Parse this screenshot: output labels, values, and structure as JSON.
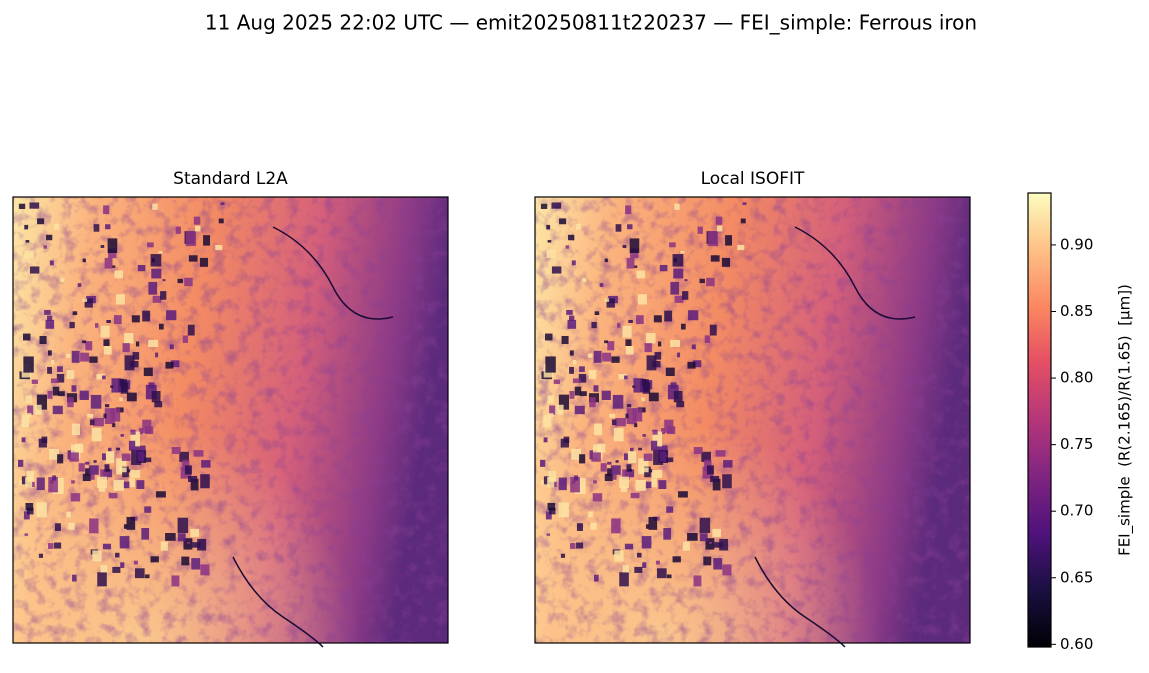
{
  "chart_data": {
    "type": "image",
    "title": "11 Aug 2025 22:02 UTC — emit20250811t220237 — FEI_simple: Ferrous iron",
    "panels": [
      {
        "title": "Standard L2A"
      },
      {
        "title": "Local ISOFIT"
      }
    ],
    "colorbar": {
      "label": "FEI_simple  (R(2.165)/R(1.65)  [µm])",
      "colormap": "magma",
      "lim": [
        0.598,
        0.939
      ],
      "ticks": [
        {
          "value": 0.6,
          "label": "0.60"
        },
        0.65,
        {
          "value": 0.7,
          "label": "0.70"
        },
        0.75,
        {
          "value": 0.8,
          "label": "0.80"
        },
        0.85,
        {
          "value": 0.9,
          "label": "0.90"
        }
      ]
    }
  }
}
